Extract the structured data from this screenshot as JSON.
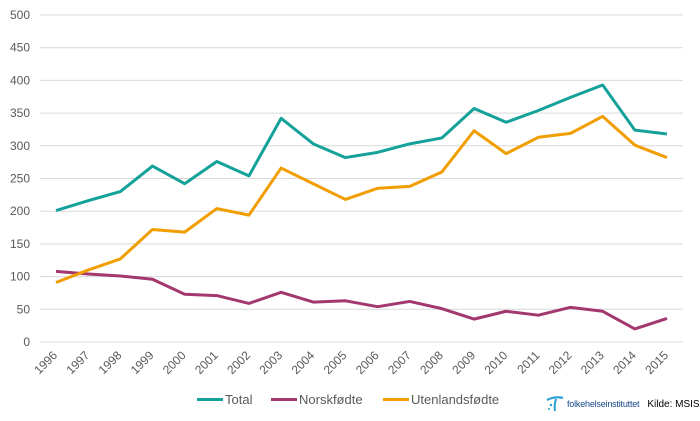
{
  "chart_data": {
    "type": "line",
    "title": "",
    "xlabel": "",
    "ylabel": "",
    "ylim": [
      0,
      500
    ],
    "yticks": [
      0,
      50,
      100,
      150,
      200,
      250,
      300,
      350,
      400,
      450,
      500
    ],
    "grid": true,
    "legend_position": "bottom",
    "categories": [
      "1996",
      "1997",
      "1998",
      "1999",
      "2000",
      "2001",
      "2002",
      "2003",
      "2004",
      "2005",
      "2006",
      "2007",
      "2008",
      "2009",
      "2010",
      "2011",
      "2012",
      "2013",
      "2014",
      "2015"
    ],
    "series": [
      {
        "name": "Total",
        "color": "#13A19A",
        "values": [
          201,
          216,
          230,
          269,
          242,
          276,
          254,
          342,
          303,
          282,
          290,
          303,
          312,
          357,
          336,
          354,
          374,
          393,
          324,
          318
        ]
      },
      {
        "name": "Norskfødte",
        "color": "#A2386E",
        "values": [
          108,
          104,
          101,
          96,
          73,
          71,
          59,
          76,
          61,
          63,
          54,
          62,
          51,
          35,
          47,
          41,
          53,
          47,
          20,
          36
        ]
      },
      {
        "name": "Utenlandsfødte",
        "color": "#F09E00",
        "values": [
          91,
          110,
          127,
          172,
          168,
          204,
          194,
          266,
          242,
          218,
          235,
          238,
          260,
          323,
          288,
          313,
          319,
          345,
          301,
          282
        ]
      }
    ]
  },
  "footer": {
    "logo_text": "folkehelseinstituttet",
    "source": "Kilde: MSIS"
  }
}
